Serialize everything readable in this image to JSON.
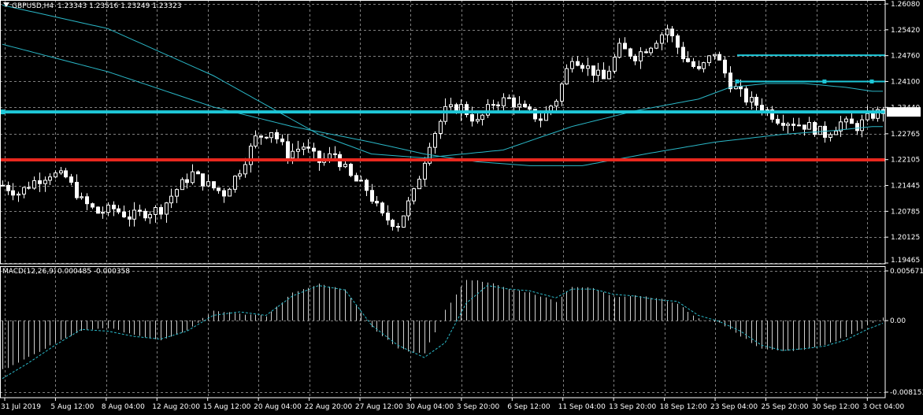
{
  "header": {
    "symbol": "GBPUSD,H4",
    "ohlc": "1.23343 1.23516 1.23249 1.23323"
  },
  "macd_header": {
    "label": "MACD(12,26,9)",
    "values": "0.000485 -0.000358"
  },
  "colors": {
    "background": "#000000",
    "grid": "#7f7f7f",
    "frame": "#ffffff",
    "candle": "#ffffff",
    "ma": "#2ab7c7",
    "hline_cyan": "#1ec8d8",
    "hline_red": "#e8281e",
    "price_box_bg": "#ffffff",
    "price_box_fg": "#000000"
  },
  "chart_data": [
    {
      "type": "candlestick",
      "title": "GBPUSD,H4",
      "ylim": [
        1.19465,
        1.2608
      ],
      "yticks": [
        "1.26080",
        "1.25420",
        "1.24760",
        "1.24100",
        "1.23440",
        "1.22765",
        "1.22105",
        "1.21445",
        "1.20785",
        "1.20125",
        "1.19465"
      ],
      "current_price": "1.23323",
      "x_ticks": [
        "31 Jul 2019",
        "5 Aug 12:00",
        "8 Aug 04:00",
        "12 Aug 20:00",
        "15 Aug 12:00",
        "20 Aug 04:00",
        "22 Aug 20:00",
        "27 Aug 12:00",
        "30 Aug 04:00",
        "3 Sep 20:00",
        "6 Sep 12:00",
        "11 Sep 04:00",
        "13 Sep 20:00",
        "18 Sep 12:00",
        "23 Sep 04:00",
        "25 Sep 20:00",
        "30 Sep 12:00",
        "3 Oct 04:00"
      ],
      "grid": true,
      "horizontal_lines": [
        {
          "price": 1.23323,
          "color": "#1ec8d8",
          "style": "thick"
        },
        {
          "price": 1.221,
          "color": "#e8281e",
          "style": "thick"
        },
        {
          "price": 1.2477,
          "color": "#1ec8d8",
          "style": "thin",
          "from": "23 Sep 04:00"
        },
        {
          "price": 1.241,
          "color": "#1ec8d8",
          "style": "thin",
          "from": "23 Sep 04:00"
        }
      ],
      "close_path": [
        [
          0,
          1.2145
        ],
        [
          3,
          1.2125
        ],
        [
          6,
          1.2155
        ],
        [
          9,
          1.2175
        ],
        [
          12,
          1.2165
        ],
        [
          15,
          1.2105
        ],
        [
          18,
          1.2075
        ],
        [
          21,
          1.2085
        ],
        [
          24,
          1.2065
        ],
        [
          27,
          1.2075
        ],
        [
          30,
          1.2085
        ],
        [
          33,
          1.2135
        ],
        [
          36,
          1.2175
        ],
        [
          39,
          1.2145
        ],
        [
          42,
          1.2125
        ],
        [
          45,
          1.2185
        ],
        [
          48,
          1.2265
        ],
        [
          51,
          1.2285
        ],
        [
          54,
          1.2225
        ],
        [
          57,
          1.2245
        ],
        [
          60,
          1.2205
        ],
        [
          63,
          1.2225
        ],
        [
          66,
          1.2165
        ],
        [
          69,
          1.2135
        ],
        [
          72,
          1.2065
        ],
        [
          75,
          1.2045
        ],
        [
          78,
          1.2125
        ],
        [
          81,
          1.2255
        ],
        [
          84,
          1.2335
        ],
        [
          87,
          1.2345
        ],
        [
          90,
          1.2305
        ],
        [
          93,
          1.2355
        ],
        [
          96,
          1.2365
        ],
        [
          99,
          1.2335
        ],
        [
          102,
          1.2315
        ],
        [
          105,
          1.2365
        ],
        [
          108,
          1.2475
        ],
        [
          111,
          1.2445
        ],
        [
          114,
          1.2415
        ],
        [
          117,
          1.2495
        ],
        [
          120,
          1.2475
        ],
        [
          123,
          1.2505
        ],
        [
          126,
          1.2545
        ],
        [
          129,
          1.2475
        ],
        [
          132,
          1.2435
        ],
        [
          135,
          1.2485
        ],
        [
          138,
          1.2405
        ],
        [
          141,
          1.2365
        ],
        [
          144,
          1.2345
        ],
        [
          147,
          1.2315
        ],
        [
          150,
          1.2305
        ],
        [
          153,
          1.2295
        ],
        [
          156,
          1.2275
        ],
        [
          159,
          1.2305
        ],
        [
          162,
          1.2295
        ],
        [
          165,
          1.2325
        ],
        [
          167,
          1.2335
        ]
      ],
      "ma_fast": [
        [
          0,
          1.2605
        ],
        [
          20,
          1.2545
        ],
        [
          40,
          1.2425
        ],
        [
          60,
          1.2275
        ],
        [
          70,
          1.2225
        ],
        [
          80,
          1.2215
        ],
        [
          95,
          1.2235
        ],
        [
          108,
          1.2295
        ],
        [
          120,
          1.2335
        ],
        [
          132,
          1.2365
        ],
        [
          138,
          1.2395
        ],
        [
          145,
          1.2405
        ],
        [
          152,
          1.2405
        ],
        [
          160,
          1.2395
        ],
        [
          165,
          1.2385
        ]
      ],
      "ma_slow": [
        [
          0,
          1.2505
        ],
        [
          20,
          1.2435
        ],
        [
          40,
          1.2345
        ],
        [
          55,
          1.2295
        ],
        [
          70,
          1.2255
        ],
        [
          80,
          1.2225
        ],
        [
          90,
          1.2205
        ],
        [
          100,
          1.2195
        ],
        [
          110,
          1.2195
        ],
        [
          122,
          1.2225
        ],
        [
          135,
          1.2255
        ],
        [
          148,
          1.2275
        ],
        [
          158,
          1.2285
        ],
        [
          165,
          1.2295
        ]
      ]
    },
    {
      "type": "bar",
      "title": "MACD(12,26,9)",
      "ylim": [
        -0.008153,
        0.005671
      ],
      "yticks": [
        "0.005671",
        "0.00",
        "-0.008153"
      ],
      "histogram": [
        [
          0,
          -0.0056
        ],
        [
          5,
          -0.0042
        ],
        [
          10,
          -0.0025
        ],
        [
          15,
          -0.0012
        ],
        [
          20,
          -0.0008
        ],
        [
          25,
          -0.0016
        ],
        [
          30,
          -0.0022
        ],
        [
          35,
          -0.0011
        ],
        [
          40,
          0.0012
        ],
        [
          45,
          0.0008
        ],
        [
          50,
          0.0005
        ],
        [
          55,
          0.0032
        ],
        [
          60,
          0.0042
        ],
        [
          65,
          0.0035
        ],
        [
          70,
          -0.0008
        ],
        [
          75,
          -0.0032
        ],
        [
          80,
          -0.0038
        ],
        [
          84,
          0.0012
        ],
        [
          88,
          0.0047
        ],
        [
          92,
          0.0044
        ],
        [
          96,
          0.0036
        ],
        [
          100,
          0.0032
        ],
        [
          105,
          0.0022
        ],
        [
          108,
          0.0039
        ],
        [
          112,
          0.0037
        ],
        [
          116,
          0.0027
        ],
        [
          120,
          0.0029
        ],
        [
          124,
          0.0026
        ],
        [
          128,
          0.0019
        ],
        [
          132,
          0.0002
        ],
        [
          136,
          -0.0002
        ],
        [
          140,
          -0.0018
        ],
        [
          144,
          -0.0032
        ],
        [
          148,
          -0.0035
        ],
        [
          152,
          -0.0033
        ],
        [
          156,
          -0.0028
        ],
        [
          160,
          -0.0018
        ],
        [
          164,
          -0.0006
        ],
        [
          167,
          0.0004
        ]
      ],
      "signal": [
        [
          0,
          -0.0066
        ],
        [
          5,
          -0.0048
        ],
        [
          10,
          -0.0028
        ],
        [
          15,
          -0.001
        ],
        [
          20,
          -0.0012
        ],
        [
          25,
          -0.0018
        ],
        [
          30,
          -0.0021
        ],
        [
          35,
          -0.0012
        ],
        [
          40,
          0.0006
        ],
        [
          45,
          0.001
        ],
        [
          50,
          0.0006
        ],
        [
          55,
          0.0028
        ],
        [
          60,
          0.004
        ],
        [
          65,
          0.0035
        ],
        [
          70,
          -0.0005
        ],
        [
          75,
          -0.0028
        ],
        [
          80,
          -0.0042
        ],
        [
          84,
          -0.0025
        ],
        [
          88,
          0.002
        ],
        [
          92,
          0.004
        ],
        [
          96,
          0.0036
        ],
        [
          100,
          0.0034
        ],
        [
          105,
          0.0026
        ],
        [
          108,
          0.0036
        ],
        [
          112,
          0.0036
        ],
        [
          116,
          0.003
        ],
        [
          120,
          0.0028
        ],
        [
          124,
          0.0024
        ],
        [
          128,
          0.0022
        ],
        [
          132,
          0.0006
        ],
        [
          136,
          -0.0001
        ],
        [
          140,
          -0.0012
        ],
        [
          144,
          -0.0028
        ],
        [
          148,
          -0.0034
        ],
        [
          152,
          -0.0032
        ],
        [
          156,
          -0.0029
        ],
        [
          160,
          -0.0022
        ],
        [
          164,
          -0.001
        ],
        [
          167,
          -0.0003
        ]
      ]
    }
  ]
}
